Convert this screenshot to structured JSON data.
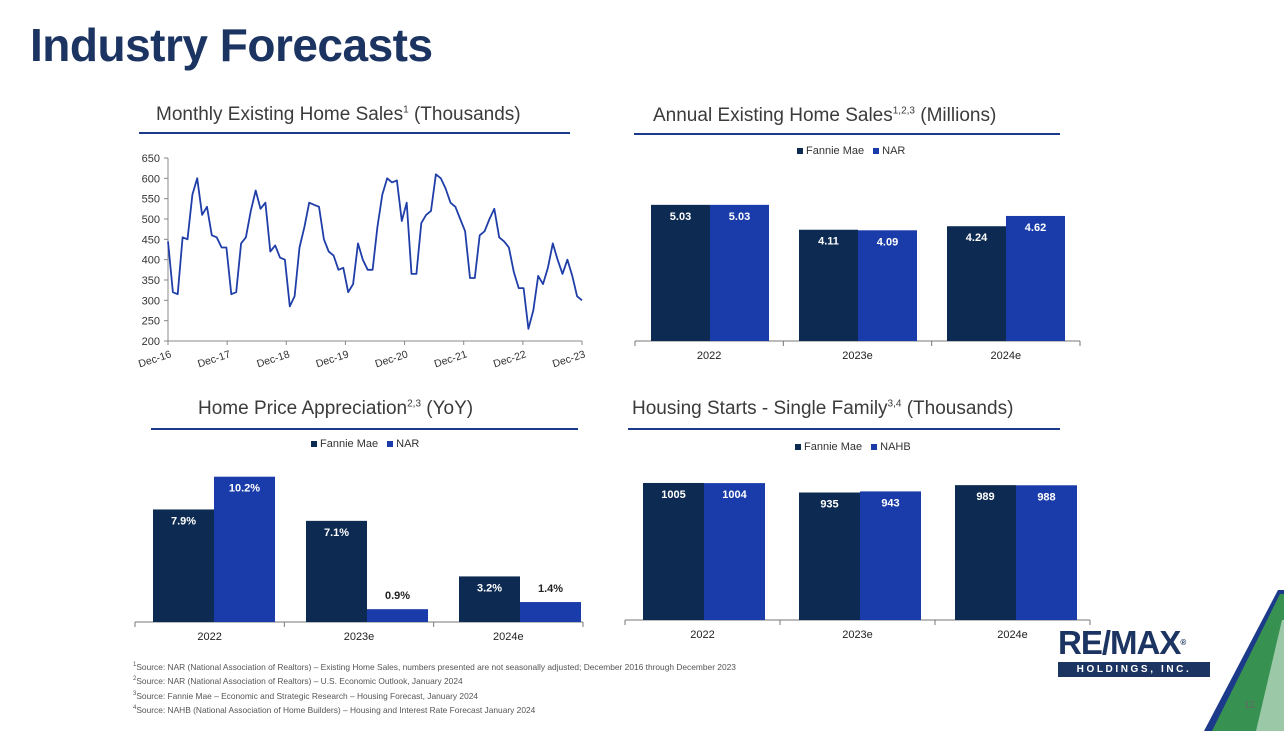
{
  "page": {
    "title": "Industry Forecasts",
    "page_number": "12",
    "footnotes": [
      {
        "sup": "1",
        "text": "Source: NAR (National Association of Realtors) – Existing Home Sales, numbers presented are not seasonally adjusted; December 2016 through December 2023"
      },
      {
        "sup": "2",
        "text": "Source: NAR (National Association of Realtors) – U.S. Economic Outlook, January 2024"
      },
      {
        "sup": "3",
        "text": "Source: Fannie Mae – Economic and Strategic Research – Housing Forecast, January 2024"
      },
      {
        "sup": "4",
        "text": "Source: NAHB (National Association of Home Builders) – Housing and Interest Rate Forecast January 2024"
      }
    ],
    "logo": {
      "main": "RE/MAX",
      "tm": "®",
      "sub": "HOLDINGS, INC."
    }
  },
  "colors": {
    "title": "#1c3462",
    "dark_series": "#0d2b52",
    "blue_series": "#1a3caa",
    "line": "#1f3ea8",
    "rule": "#1c3a8a",
    "accent_green": "#3b9c4a"
  },
  "chart_data": [
    {
      "id": "monthly",
      "type": "line",
      "title": "Monthly Existing Home Sales",
      "title_sup": "1",
      "title_suffix": " (Thousands)",
      "ylim": [
        200,
        650
      ],
      "yticks": [
        200,
        250,
        300,
        350,
        400,
        450,
        500,
        550,
        600,
        650
      ],
      "xtick_labels": [
        "Dec-16",
        "Dec-17",
        "Dec-18",
        "Dec-19",
        "Dec-20",
        "Dec-21",
        "Dec-22",
        "Dec-23"
      ],
      "grid": false,
      "series": [
        {
          "values": [
            445,
            320,
            315,
            455,
            450,
            560,
            600,
            510,
            530,
            460,
            455,
            430,
            430,
            315,
            320,
            440,
            455,
            520,
            570,
            525,
            540,
            420,
            435,
            405,
            400,
            285,
            310,
            430,
            480,
            540,
            535,
            530,
            450,
            420,
            410,
            375,
            380,
            320,
            340,
            440,
            400,
            375,
            375,
            480,
            560,
            600,
            590,
            595,
            495,
            540,
            365,
            365,
            490,
            510,
            520,
            610,
            600,
            575,
            540,
            530,
            500,
            470,
            355,
            355,
            460,
            470,
            500,
            525,
            455,
            445,
            430,
            370,
            330,
            330,
            230,
            275,
            360,
            340,
            380,
            440,
            400,
            365,
            400,
            360,
            310,
            300
          ]
        }
      ]
    },
    {
      "id": "annual",
      "type": "bar",
      "title": "Annual Existing Home Sales",
      "title_sup": "1,2,3",
      "title_suffix": " (Millions)",
      "categories": [
        "2022",
        "2023e",
        "2024e"
      ],
      "ylim": [
        0,
        5.8
      ],
      "legend_position": "top",
      "series": [
        {
          "name": "Fannie Mae",
          "values": [
            5.03,
            4.11,
            4.24
          ],
          "labels": [
            "5.03",
            "4.11",
            "4.24"
          ]
        },
        {
          "name": "NAR",
          "values": [
            5.03,
            4.09,
            4.62
          ],
          "labels": [
            "5.03",
            "4.09",
            "4.62"
          ]
        }
      ]
    },
    {
      "id": "hpa",
      "type": "bar",
      "title": "Home Price Appreciation",
      "title_sup": "2,3",
      "title_suffix": " (YoY)",
      "categories": [
        "2022",
        "2023e",
        "2024e"
      ],
      "ylim": [
        0,
        10.6
      ],
      "legend_position": "top",
      "series": [
        {
          "name": "Fannie Mae",
          "values": [
            7.9,
            7.1,
            3.2
          ],
          "labels": [
            "7.9%",
            "7.1%",
            "3.2%"
          ]
        },
        {
          "name": "NAR",
          "values": [
            10.2,
            0.9,
            1.4
          ],
          "labels": [
            "10.2%",
            "0.9%",
            "1.4%"
          ]
        }
      ]
    },
    {
      "id": "starts",
      "type": "bar",
      "title": "Housing Starts - Single Family",
      "title_sup": "3,4",
      "title_suffix": " (Thousands)",
      "categories": [
        "2022",
        "2023e",
        "2024e"
      ],
      "ylim": [
        0,
        1100
      ],
      "legend_position": "top",
      "series": [
        {
          "name": "Fannie Mae",
          "values": [
            1005,
            935,
            989
          ],
          "labels": [
            "1005",
            "935",
            "989"
          ]
        },
        {
          "name": "NAHB",
          "values": [
            1004,
            943,
            988
          ],
          "labels": [
            "1004",
            "943",
            "988"
          ]
        }
      ]
    }
  ]
}
